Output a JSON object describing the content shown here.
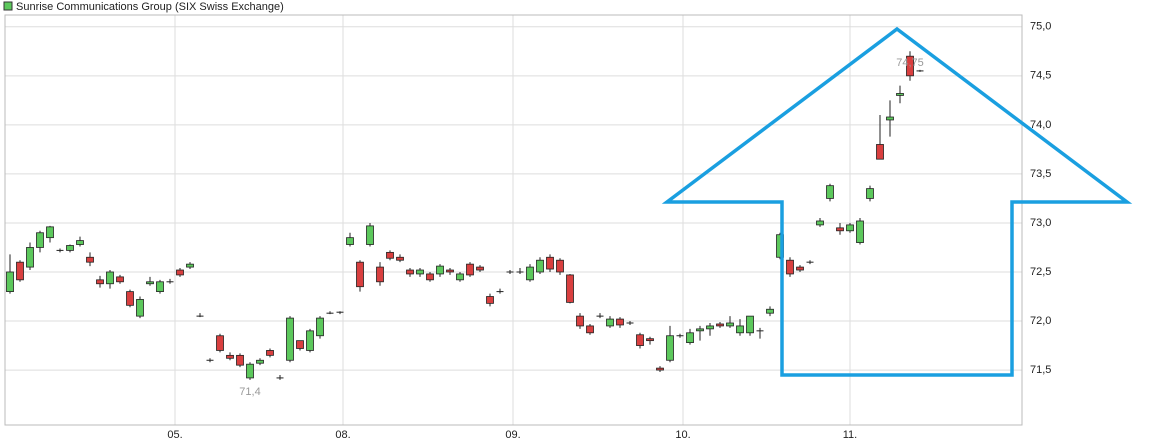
{
  "chart_data": {
    "type": "candlestick",
    "title": "Sunrise Communications Group (SIX Swiss Exchange)",
    "legend_color": "#5cc85c",
    "up_color": "#5cc85c",
    "down_color": "#d93f3f",
    "grid": true,
    "x": [
      0,
      1,
      2,
      3,
      4,
      5,
      6,
      7,
      8,
      9,
      10,
      11,
      12,
      13,
      14,
      15,
      16,
      17,
      18,
      19,
      20,
      21,
      22,
      23,
      24,
      25,
      26,
      27,
      28,
      29,
      30,
      31,
      32,
      33,
      34,
      35,
      36,
      37,
      38,
      39,
      40,
      41,
      42,
      43,
      44,
      45,
      46,
      47,
      48,
      49,
      50,
      51,
      52,
      53,
      54,
      55,
      56,
      57,
      58,
      59,
      60,
      61,
      62,
      63,
      64,
      65,
      66,
      67,
      68,
      69,
      70,
      71,
      72,
      73,
      74,
      75,
      76,
      77,
      78,
      79,
      80,
      81,
      82,
      83,
      84,
      85,
      86,
      87,
      88,
      89,
      90,
      91
    ],
    "open": [
      72.3,
      72.6,
      72.55,
      72.75,
      72.85,
      72.72,
      72.72,
      72.78,
      72.65,
      72.42,
      72.38,
      72.45,
      72.3,
      72.05,
      72.38,
      72.3,
      72.4,
      72.52,
      72.55,
      72.06,
      71.6,
      71.85,
      71.65,
      71.65,
      71.42,
      71.57,
      71.7,
      71.43,
      71.6,
      71.8,
      71.7,
      71.85,
      72.08,
      72.08,
      72.78,
      72.6,
      72.78,
      72.55,
      72.7,
      72.65,
      72.52,
      72.48,
      72.48,
      72.48,
      72.52,
      72.42,
      72.58,
      72.55,
      72.25,
      72.3,
      72.5,
      72.5,
      72.42,
      72.5,
      72.65,
      72.62,
      72.47,
      72.05,
      71.95,
      72.05,
      71.95,
      72.02,
      71.98,
      71.86,
      71.82,
      71.52,
      71.6,
      71.85,
      71.78,
      71.9,
      71.92,
      71.97,
      71.95,
      71.88,
      71.88,
      71.9,
      72.08,
      72.65,
      72.62,
      72.55,
      72.6,
      72.98,
      73.25,
      72.95,
      72.92,
      72.8,
      73.25,
      73.8,
      74.05,
      74.3,
      74.7,
      74.55
    ],
    "high": [
      72.68,
      72.62,
      72.8,
      72.92,
      72.97,
      72.74,
      72.78,
      72.86,
      72.7,
      72.46,
      72.52,
      72.47,
      72.32,
      72.25,
      72.45,
      72.42,
      72.43,
      72.54,
      72.6,
      72.08,
      71.62,
      71.87,
      71.68,
      71.67,
      71.58,
      71.62,
      71.72,
      71.45,
      72.05,
      71.8,
      71.92,
      72.05,
      72.1,
      72.1,
      72.9,
      72.62,
      73.0,
      72.6,
      72.72,
      72.68,
      72.54,
      72.54,
      72.5,
      72.58,
      72.54,
      72.5,
      72.6,
      72.57,
      72.28,
      72.33,
      72.52,
      72.54,
      72.58,
      72.65,
      72.68,
      72.64,
      72.48,
      72.08,
      71.97,
      72.08,
      72.05,
      72.04,
      72.0,
      71.88,
      71.84,
      71.54,
      71.95,
      71.87,
      71.92,
      71.95,
      71.98,
      71.99,
      72.05,
      72.02,
      72.05,
      71.93,
      72.15,
      72.9,
      72.65,
      72.57,
      72.62,
      73.05,
      73.4,
      73.0,
      73.0,
      73.05,
      73.38,
      74.1,
      74.25,
      74.4,
      74.75,
      74.56
    ],
    "low": [
      72.28,
      72.4,
      72.52,
      72.7,
      72.8,
      72.7,
      72.7,
      72.76,
      72.56,
      72.34,
      72.33,
      72.38,
      72.14,
      72.03,
      72.36,
      72.28,
      72.38,
      72.45,
      72.53,
      72.04,
      71.58,
      71.68,
      71.6,
      71.53,
      71.4,
      71.55,
      71.63,
      71.4,
      71.58,
      71.7,
      71.68,
      71.82,
      72.07,
      72.07,
      72.76,
      72.3,
      72.76,
      72.36,
      72.62,
      72.6,
      72.45,
      72.45,
      72.4,
      72.45,
      72.47,
      72.4,
      72.45,
      72.5,
      72.15,
      72.28,
      72.48,
      72.48,
      72.4,
      72.48,
      72.5,
      72.47,
      72.18,
      71.92,
      71.86,
      72.03,
      71.93,
      71.93,
      71.96,
      71.72,
      71.76,
      71.48,
      71.58,
      71.83,
      71.76,
      71.8,
      71.85,
      71.93,
      71.93,
      71.85,
      71.85,
      71.82,
      72.05,
      72.63,
      72.45,
      72.5,
      72.58,
      72.96,
      73.22,
      72.88,
      72.9,
      72.78,
      73.22,
      73.65,
      73.88,
      74.22,
      74.45,
      74.54
    ],
    "close": [
      72.5,
      72.42,
      72.75,
      72.9,
      72.96,
      72.72,
      72.77,
      72.82,
      72.6,
      72.38,
      72.5,
      72.4,
      72.16,
      72.22,
      72.4,
      72.4,
      72.4,
      72.47,
      72.58,
      72.05,
      71.6,
      71.7,
      71.62,
      71.55,
      71.56,
      71.6,
      71.65,
      71.42,
      72.03,
      71.72,
      71.9,
      72.03,
      72.08,
      72.09,
      72.85,
      72.35,
      72.97,
      72.4,
      72.64,
      72.62,
      72.48,
      72.52,
      72.42,
      72.56,
      72.5,
      72.48,
      72.47,
      72.52,
      72.18,
      72.3,
      72.5,
      72.5,
      72.55,
      72.62,
      72.53,
      72.5,
      72.19,
      71.95,
      71.88,
      72.05,
      72.02,
      71.96,
      71.98,
      71.75,
      71.8,
      71.5,
      71.85,
      71.85,
      71.88,
      71.92,
      71.95,
      71.95,
      71.98,
      71.95,
      72.05,
      71.9,
      72.12,
      72.88,
      72.48,
      72.52,
      72.6,
      73.02,
      73.38,
      72.92,
      72.98,
      73.02,
      73.35,
      73.65,
      74.08,
      74.32,
      74.5,
      74.55
    ],
    "annotations": [
      {
        "x": 24,
        "value": 71.4,
        "label": "71,4"
      },
      {
        "x": 90,
        "value": 74.75,
        "label": "74,75"
      }
    ],
    "xlim": [
      -0.5,
      101.2
    ],
    "xticks": [
      {
        "value": 16.5,
        "label": "05."
      },
      {
        "value": 33.3,
        "label": "08."
      },
      {
        "value": 50.3,
        "label": "09."
      },
      {
        "value": 67.3,
        "label": "10."
      },
      {
        "value": 84,
        "label": "11."
      }
    ],
    "ylim": [
      70.94,
      75.12
    ],
    "yticks": [
      {
        "value": 71.5,
        "label": "71,5"
      },
      {
        "value": 72.0,
        "label": "72,0"
      },
      {
        "value": 72.5,
        "label": "72,5"
      },
      {
        "value": 73.0,
        "label": "73,0"
      },
      {
        "value": 73.5,
        "label": "73,5"
      },
      {
        "value": 74.0,
        "label": "74,0"
      },
      {
        "value": 74.5,
        "label": "74,5"
      },
      {
        "value": 75.0,
        "label": "75,0"
      }
    ]
  }
}
